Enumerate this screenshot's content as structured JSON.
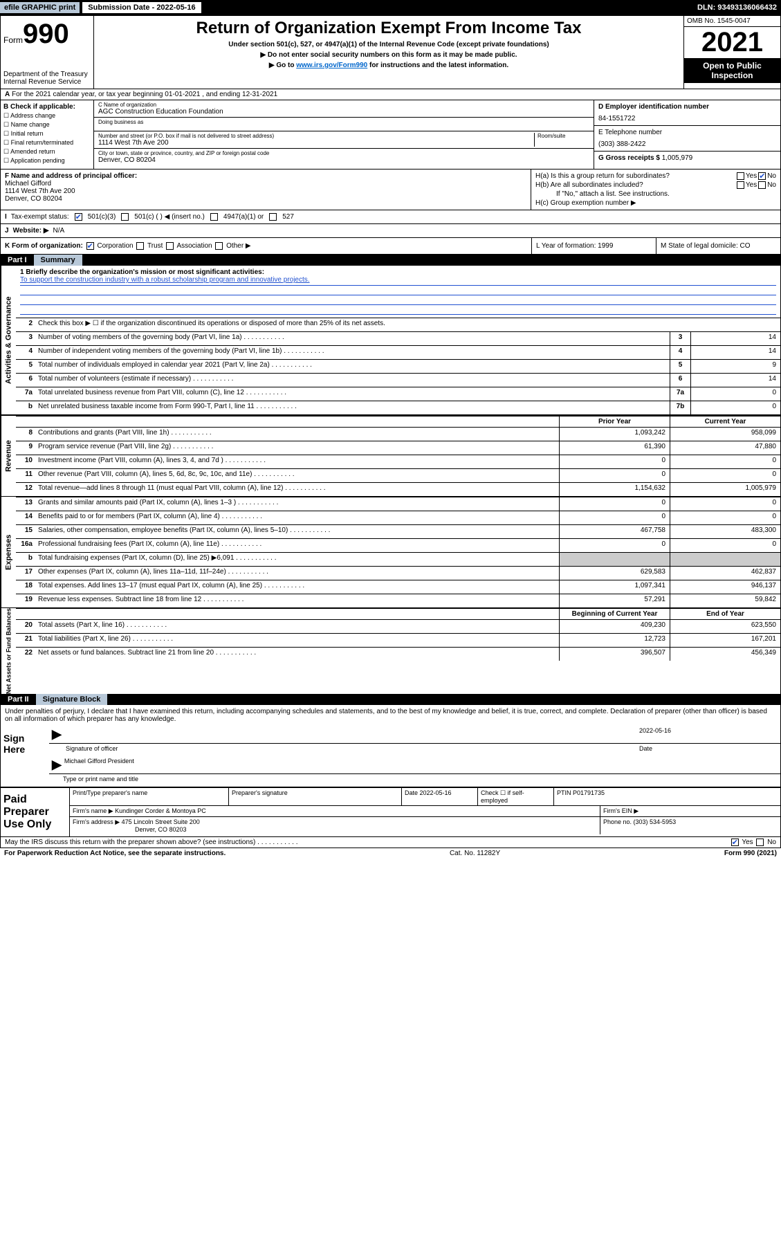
{
  "topbar": {
    "efile": "efile GRAPHIC print",
    "submission": "Submission Date - 2022-05-16",
    "dln": "DLN: 93493136066432"
  },
  "header": {
    "form_word": "Form",
    "form_num": "990",
    "dept": "Department of the Treasury Internal Revenue Service",
    "title": "Return of Organization Exempt From Income Tax",
    "sub1": "Under section 501(c), 527, or 4947(a)(1) of the Internal Revenue Code (except private foundations)",
    "sub2": "▶ Do not enter social security numbers on this form as it may be made public.",
    "sub3_pre": "▶ Go to ",
    "sub3_link": "www.irs.gov/Form990",
    "sub3_post": " for instructions and the latest information.",
    "omb": "OMB No. 1545-0047",
    "year": "2021",
    "open": "Open to Public Inspection"
  },
  "row_a": "For the 2021 calendar year, or tax year beginning 01-01-2021   , and ending 12-31-2021",
  "col_b": {
    "hdr": "B Check if applicable:",
    "items": [
      "Address change",
      "Name change",
      "Initial return",
      "Final return/terminated",
      "Amended return",
      "Application pending"
    ]
  },
  "col_c": {
    "name_lbl": "C Name of organization",
    "name": "AGC Construction Education Foundation",
    "dba_lbl": "Doing business as",
    "addr_lbl": "Number and street (or P.O. box if mail is not delivered to street address)",
    "room_lbl": "Room/suite",
    "addr": "1114 West 7th Ave 200",
    "city_lbl": "City or town, state or province, country, and ZIP or foreign postal code",
    "city": "Denver, CO  80204"
  },
  "col_de": {
    "d_lbl": "D Employer identification number",
    "ein": "84-1551722",
    "e_lbl": "E Telephone number",
    "phone": "(303) 388-2422",
    "g_lbl": "G Gross receipts $",
    "g_val": "1,005,979"
  },
  "col_f": {
    "lbl": "F Name and address of principal officer:",
    "name": "Michael Gifford",
    "addr1": "1114 West 7th Ave 200",
    "addr2": "Denver, CO  80204"
  },
  "col_h": {
    "ha": "H(a)  Is this a group return for subordinates?",
    "hb": "H(b)  Are all subordinates included?",
    "hb_note": "If \"No,\" attach a list. See instructions.",
    "hc": "H(c)  Group exemption number ▶",
    "yes": "Yes",
    "no": "No"
  },
  "row_i": {
    "lbl": "Tax-exempt status:",
    "o1": "501(c)(3)",
    "o2": "501(c) (  ) ◀ (insert no.)",
    "o3": "4947(a)(1) or",
    "o4": "527"
  },
  "row_j": {
    "lbl": "Website: ▶",
    "val": "N/A"
  },
  "row_k": {
    "lbl": "K Form of organization:",
    "o1": "Corporation",
    "o2": "Trust",
    "o3": "Association",
    "o4": "Other ▶"
  },
  "row_l": "L Year of formation: 1999",
  "row_m": "M State of legal domicile: CO",
  "part1": {
    "num": "Part I",
    "title": "Summary"
  },
  "mission": {
    "lbl": "1  Briefly describe the organization's mission or most significant activities:",
    "txt": "To support the construction industry with a robust scholarship program and innovative projects."
  },
  "lines_gov": [
    {
      "n": "2",
      "t": "Check this box ▶ ☐  if the organization discontinued its operations or disposed of more than 25% of its net assets."
    },
    {
      "n": "3",
      "t": "Number of voting members of the governing body (Part VI, line 1a)",
      "b": "3",
      "v": "14"
    },
    {
      "n": "4",
      "t": "Number of independent voting members of the governing body (Part VI, line 1b)",
      "b": "4",
      "v": "14"
    },
    {
      "n": "5",
      "t": "Total number of individuals employed in calendar year 2021 (Part V, line 2a)",
      "b": "5",
      "v": "9"
    },
    {
      "n": "6",
      "t": "Total number of volunteers (estimate if necessary)",
      "b": "6",
      "v": "14"
    },
    {
      "n": "7a",
      "t": "Total unrelated business revenue from Part VIII, column (C), line 12",
      "b": "7a",
      "v": "0"
    },
    {
      "n": "b",
      "t": "Net unrelated business taxable income from Form 990-T, Part I, line 11",
      "b": "7b",
      "v": "0"
    }
  ],
  "col_hdrs": {
    "prior": "Prior Year",
    "current": "Current Year",
    "boy": "Beginning of Current Year",
    "eoy": "End of Year"
  },
  "lines_rev": [
    {
      "n": "8",
      "t": "Contributions and grants (Part VIII, line 1h)",
      "p": "1,093,242",
      "c": "958,099"
    },
    {
      "n": "9",
      "t": "Program service revenue (Part VIII, line 2g)",
      "p": "61,390",
      "c": "47,880"
    },
    {
      "n": "10",
      "t": "Investment income (Part VIII, column (A), lines 3, 4, and 7d )",
      "p": "0",
      "c": "0"
    },
    {
      "n": "11",
      "t": "Other revenue (Part VIII, column (A), lines 5, 6d, 8c, 9c, 10c, and 11e)",
      "p": "0",
      "c": "0"
    },
    {
      "n": "12",
      "t": "Total revenue—add lines 8 through 11 (must equal Part VIII, column (A), line 12)",
      "p": "1,154,632",
      "c": "1,005,979"
    }
  ],
  "lines_exp": [
    {
      "n": "13",
      "t": "Grants and similar amounts paid (Part IX, column (A), lines 1–3 )",
      "p": "0",
      "c": "0"
    },
    {
      "n": "14",
      "t": "Benefits paid to or for members (Part IX, column (A), line 4)",
      "p": "0",
      "c": "0"
    },
    {
      "n": "15",
      "t": "Salaries, other compensation, employee benefits (Part IX, column (A), lines 5–10)",
      "p": "467,758",
      "c": "483,300"
    },
    {
      "n": "16a",
      "t": "Professional fundraising fees (Part IX, column (A), line 11e)",
      "p": "0",
      "c": "0"
    },
    {
      "n": "b",
      "t": "Total fundraising expenses (Part IX, column (D), line 25) ▶6,091",
      "p": "",
      "c": ""
    },
    {
      "n": "17",
      "t": "Other expenses (Part IX, column (A), lines 11a–11d, 11f–24e)",
      "p": "629,583",
      "c": "462,837"
    },
    {
      "n": "18",
      "t": "Total expenses. Add lines 13–17 (must equal Part IX, column (A), line 25)",
      "p": "1,097,341",
      "c": "946,137"
    },
    {
      "n": "19",
      "t": "Revenue less expenses. Subtract line 18 from line 12",
      "p": "57,291",
      "c": "59,842"
    }
  ],
  "lines_net": [
    {
      "n": "20",
      "t": "Total assets (Part X, line 16)",
      "p": "409,230",
      "c": "623,550"
    },
    {
      "n": "21",
      "t": "Total liabilities (Part X, line 26)",
      "p": "12,723",
      "c": "167,201"
    },
    {
      "n": "22",
      "t": "Net assets or fund balances. Subtract line 21 from line 20",
      "p": "396,507",
      "c": "456,349"
    }
  ],
  "vtabs": {
    "gov": "Activities & Governance",
    "rev": "Revenue",
    "exp": "Expenses",
    "net": "Net Assets or Fund Balances"
  },
  "part2": {
    "num": "Part II",
    "title": "Signature Block"
  },
  "sig": {
    "decl": "Under penalties of perjury, I declare that I have examined this return, including accompanying schedules and statements, and to the best of my knowledge and belief, it is true, correct, and complete. Declaration of preparer (other than officer) is based on all information of which preparer has any knowledge.",
    "sign_here": "Sign Here",
    "sig_officer": "Signature of officer",
    "date": "Date",
    "date_val": "2022-05-16",
    "name": "Michael Gifford President",
    "type_name": "Type or print name and title"
  },
  "paid": {
    "hdr": "Paid Preparer Use Only",
    "r1": {
      "c1": "Print/Type preparer's name",
      "c2": "Preparer's signature",
      "c3": "Date 2022-05-16",
      "c4": "Check ☐ if self-employed",
      "c5": "PTIN P01791735"
    },
    "r2": {
      "c1": "Firm's name    ▶ Kundinger Corder & Montoya PC",
      "c2": "Firm's EIN ▶"
    },
    "r3": {
      "c1": "Firm's address ▶ 475 Lincoln Street Suite 200",
      "c2": "Phone no. (303) 534-5953"
    },
    "r3b": "Denver, CO  80203"
  },
  "footer": {
    "q": "May the IRS discuss this return with the preparer shown above? (see instructions)",
    "yes": "Yes",
    "no": "No"
  },
  "bottom": {
    "l": "For Paperwork Reduction Act Notice, see the separate instructions.",
    "c": "Cat. No. 11282Y",
    "r": "Form 990 (2021)"
  }
}
